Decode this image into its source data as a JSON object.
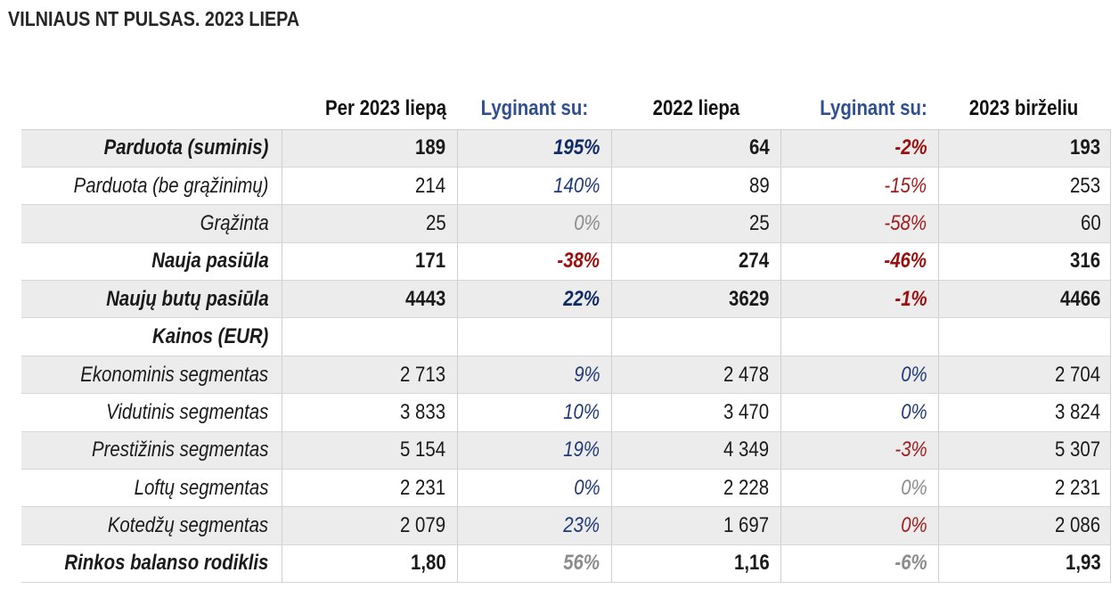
{
  "title": "VILNIAUS NT PULSAS. 2023 LIEPA",
  "header": {
    "col1": "Per 2023 liepą",
    "col2": "Lyginant su:",
    "col3": "2022 liepa",
    "col4": "Lyginant su:",
    "col5": "2023 birželiu"
  },
  "rows": [
    {
      "label": "Parduota (suminis)",
      "v1": "189",
      "p1": "195%",
      "v2": "64",
      "p2": "-2%",
      "v3": "193"
    },
    {
      "label": "Parduota (be grąžinimų)",
      "v1": "214",
      "p1": "140%",
      "v2": "89",
      "p2": "-15%",
      "v3": "253"
    },
    {
      "label": "Grąžinta",
      "v1": "25",
      "p1": "0%",
      "v2": "25",
      "p2": "-58%",
      "v3": "60"
    },
    {
      "label": "Nauja pasiūla",
      "v1": "171",
      "p1": "-38%",
      "v2": "274",
      "p2": "-46%",
      "v3": "316"
    },
    {
      "label": "Naujų butų pasiūla",
      "v1": "4443",
      "p1": "22%",
      "v2": "3629",
      "p2": "-1%",
      "v3": "4466"
    },
    {
      "label": "Kainos (EUR)",
      "v1": "",
      "p1": "",
      "v2": "",
      "p2": "",
      "v3": ""
    },
    {
      "label": "Ekonominis segmentas",
      "v1": "2 713",
      "p1": "9%",
      "v2": "2 478",
      "p2": "0%",
      "v3": "2 704"
    },
    {
      "label": "Vidutinis segmentas",
      "v1": "3 833",
      "p1": "10%",
      "v2": "3 470",
      "p2": "0%",
      "v3": "3 824"
    },
    {
      "label": "Prestižinis segmentas",
      "v1": "5 154",
      "p1": "19%",
      "v2": "4 349",
      "p2": "-3%",
      "v3": "5 307"
    },
    {
      "label": "Loftų segmentas",
      "v1": "2 231",
      "p1": "0%",
      "v2": "2 228",
      "p2": "0%",
      "v3": "2 231"
    },
    {
      "label": "Kotedžų segmentas",
      "v1": "2 079",
      "p1": "23%",
      "v2": "1 697",
      "p2": "0%",
      "v3": "2 086"
    },
    {
      "label": "Rinkos balanso rodiklis",
      "v1": "1,80",
      "p1": "56%",
      "v2": "1,16",
      "p2": "-6%",
      "v3": "1,93"
    }
  ],
  "colors": {
    "positive": "#1f3a78",
    "negative": "#a01c1c",
    "neutral": "#8c8c8c",
    "row_shade": "#ececec"
  }
}
